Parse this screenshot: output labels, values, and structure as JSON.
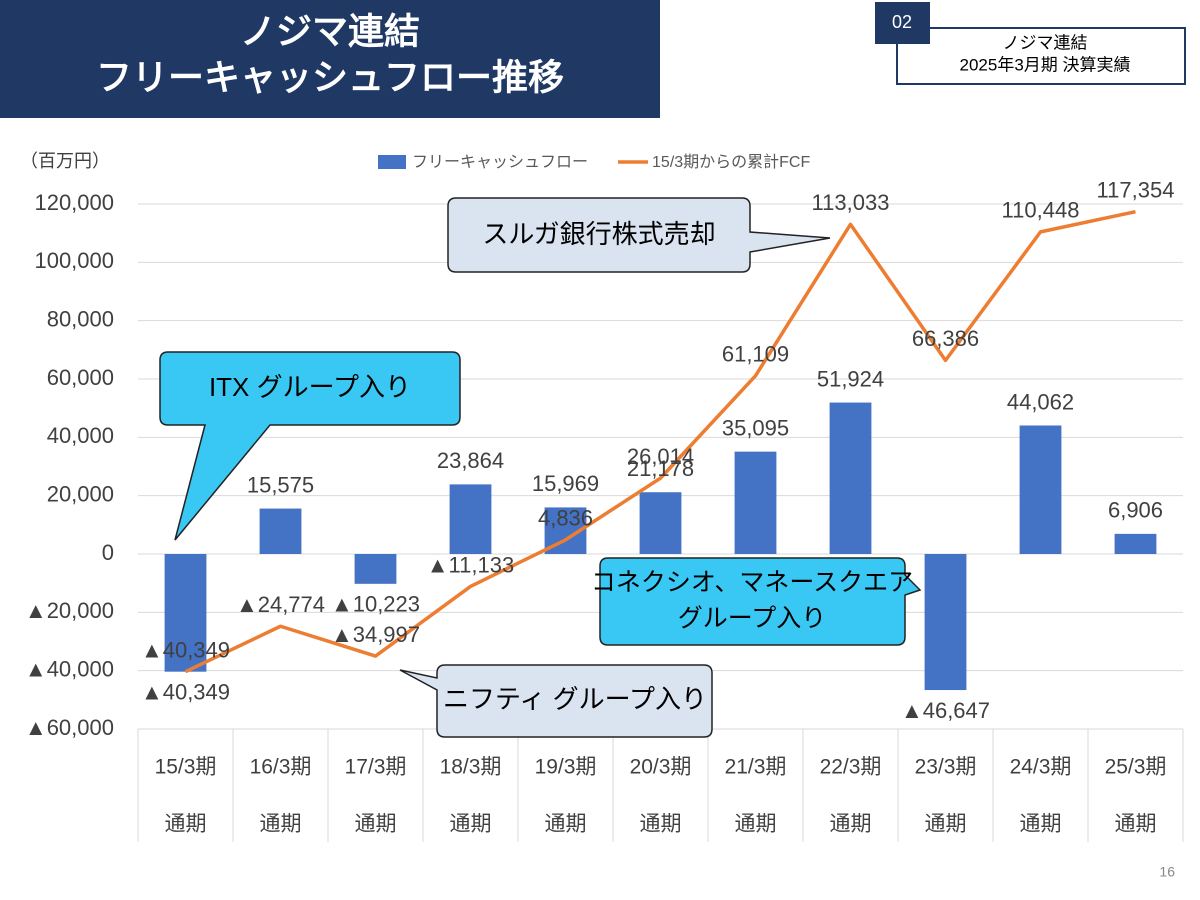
{
  "header": {
    "title": [
      "ノジマ連結",
      "フリーキャッシュフロー推移"
    ],
    "badge": "02",
    "info": [
      "ノジマ連結",
      "2025年3月期 決算実績"
    ],
    "page": "16"
  },
  "chart_data": {
    "type": "bar",
    "unit_label": "（百万円）",
    "categories": [
      [
        "15/3期",
        "通期"
      ],
      [
        "16/3期",
        "通期"
      ],
      [
        "17/3期",
        "通期"
      ],
      [
        "18/3期",
        "通期"
      ],
      [
        "19/3期",
        "通期"
      ],
      [
        "20/3期",
        "通期"
      ],
      [
        "21/3期",
        "通期"
      ],
      [
        "22/3期",
        "通期"
      ],
      [
        "23/3期",
        "通期"
      ],
      [
        "24/3期",
        "通期"
      ],
      [
        "25/3期",
        "通期"
      ]
    ],
    "series": [
      {
        "name": "フリーキャッシュフロー",
        "type": "bar",
        "color": "#4472c4",
        "values": [
          -40349,
          15575,
          -10223,
          23864,
          15969,
          21178,
          35095,
          51924,
          -46647,
          44062,
          6906
        ],
        "value_labels": [
          "▲40,349",
          "15,575",
          "▲10,223",
          "23,864",
          "15,969",
          "21,178",
          "35,095",
          "51,924",
          "▲46,647",
          "44,062",
          "6,906"
        ]
      },
      {
        "name": "15/3期からの累計FCF",
        "type": "line",
        "color": "#ed7d31",
        "values": [
          -40349,
          -24774,
          -34997,
          -11133,
          4836,
          26014,
          61109,
          113033,
          66386,
          110448,
          117354
        ],
        "value_labels": [
          "▲40,349",
          "▲24,774",
          "▲34,997",
          "▲11,133",
          "4,836",
          "26,014",
          "61,109",
          "113,033",
          "66,386",
          "110,448",
          "117,354"
        ]
      }
    ],
    "ylim": [
      -60000,
      120000
    ],
    "yticks": [
      {
        "value": -60000,
        "label": "▲60,000"
      },
      {
        "value": -40000,
        "label": "▲40,000"
      },
      {
        "value": -20000,
        "label": "▲20,000"
      },
      0,
      {
        "value": 20000,
        "label": "20,000"
      },
      {
        "value": 40000,
        "label": "40,000"
      },
      {
        "value": 60000,
        "label": "60,000"
      },
      {
        "value": 80000,
        "label": "80,000"
      },
      {
        "value": 100000,
        "label": "100,000"
      },
      {
        "value": 120000,
        "label": "120,000"
      }
    ],
    "grid": true,
    "annotations": [
      [
        "スルガ銀行株式売却"
      ],
      [
        "ITX グループ入り"
      ],
      [
        "コネクシオ、マネースクエア",
        "グループ入り"
      ],
      [
        "ニフティ グループ入り"
      ]
    ]
  }
}
